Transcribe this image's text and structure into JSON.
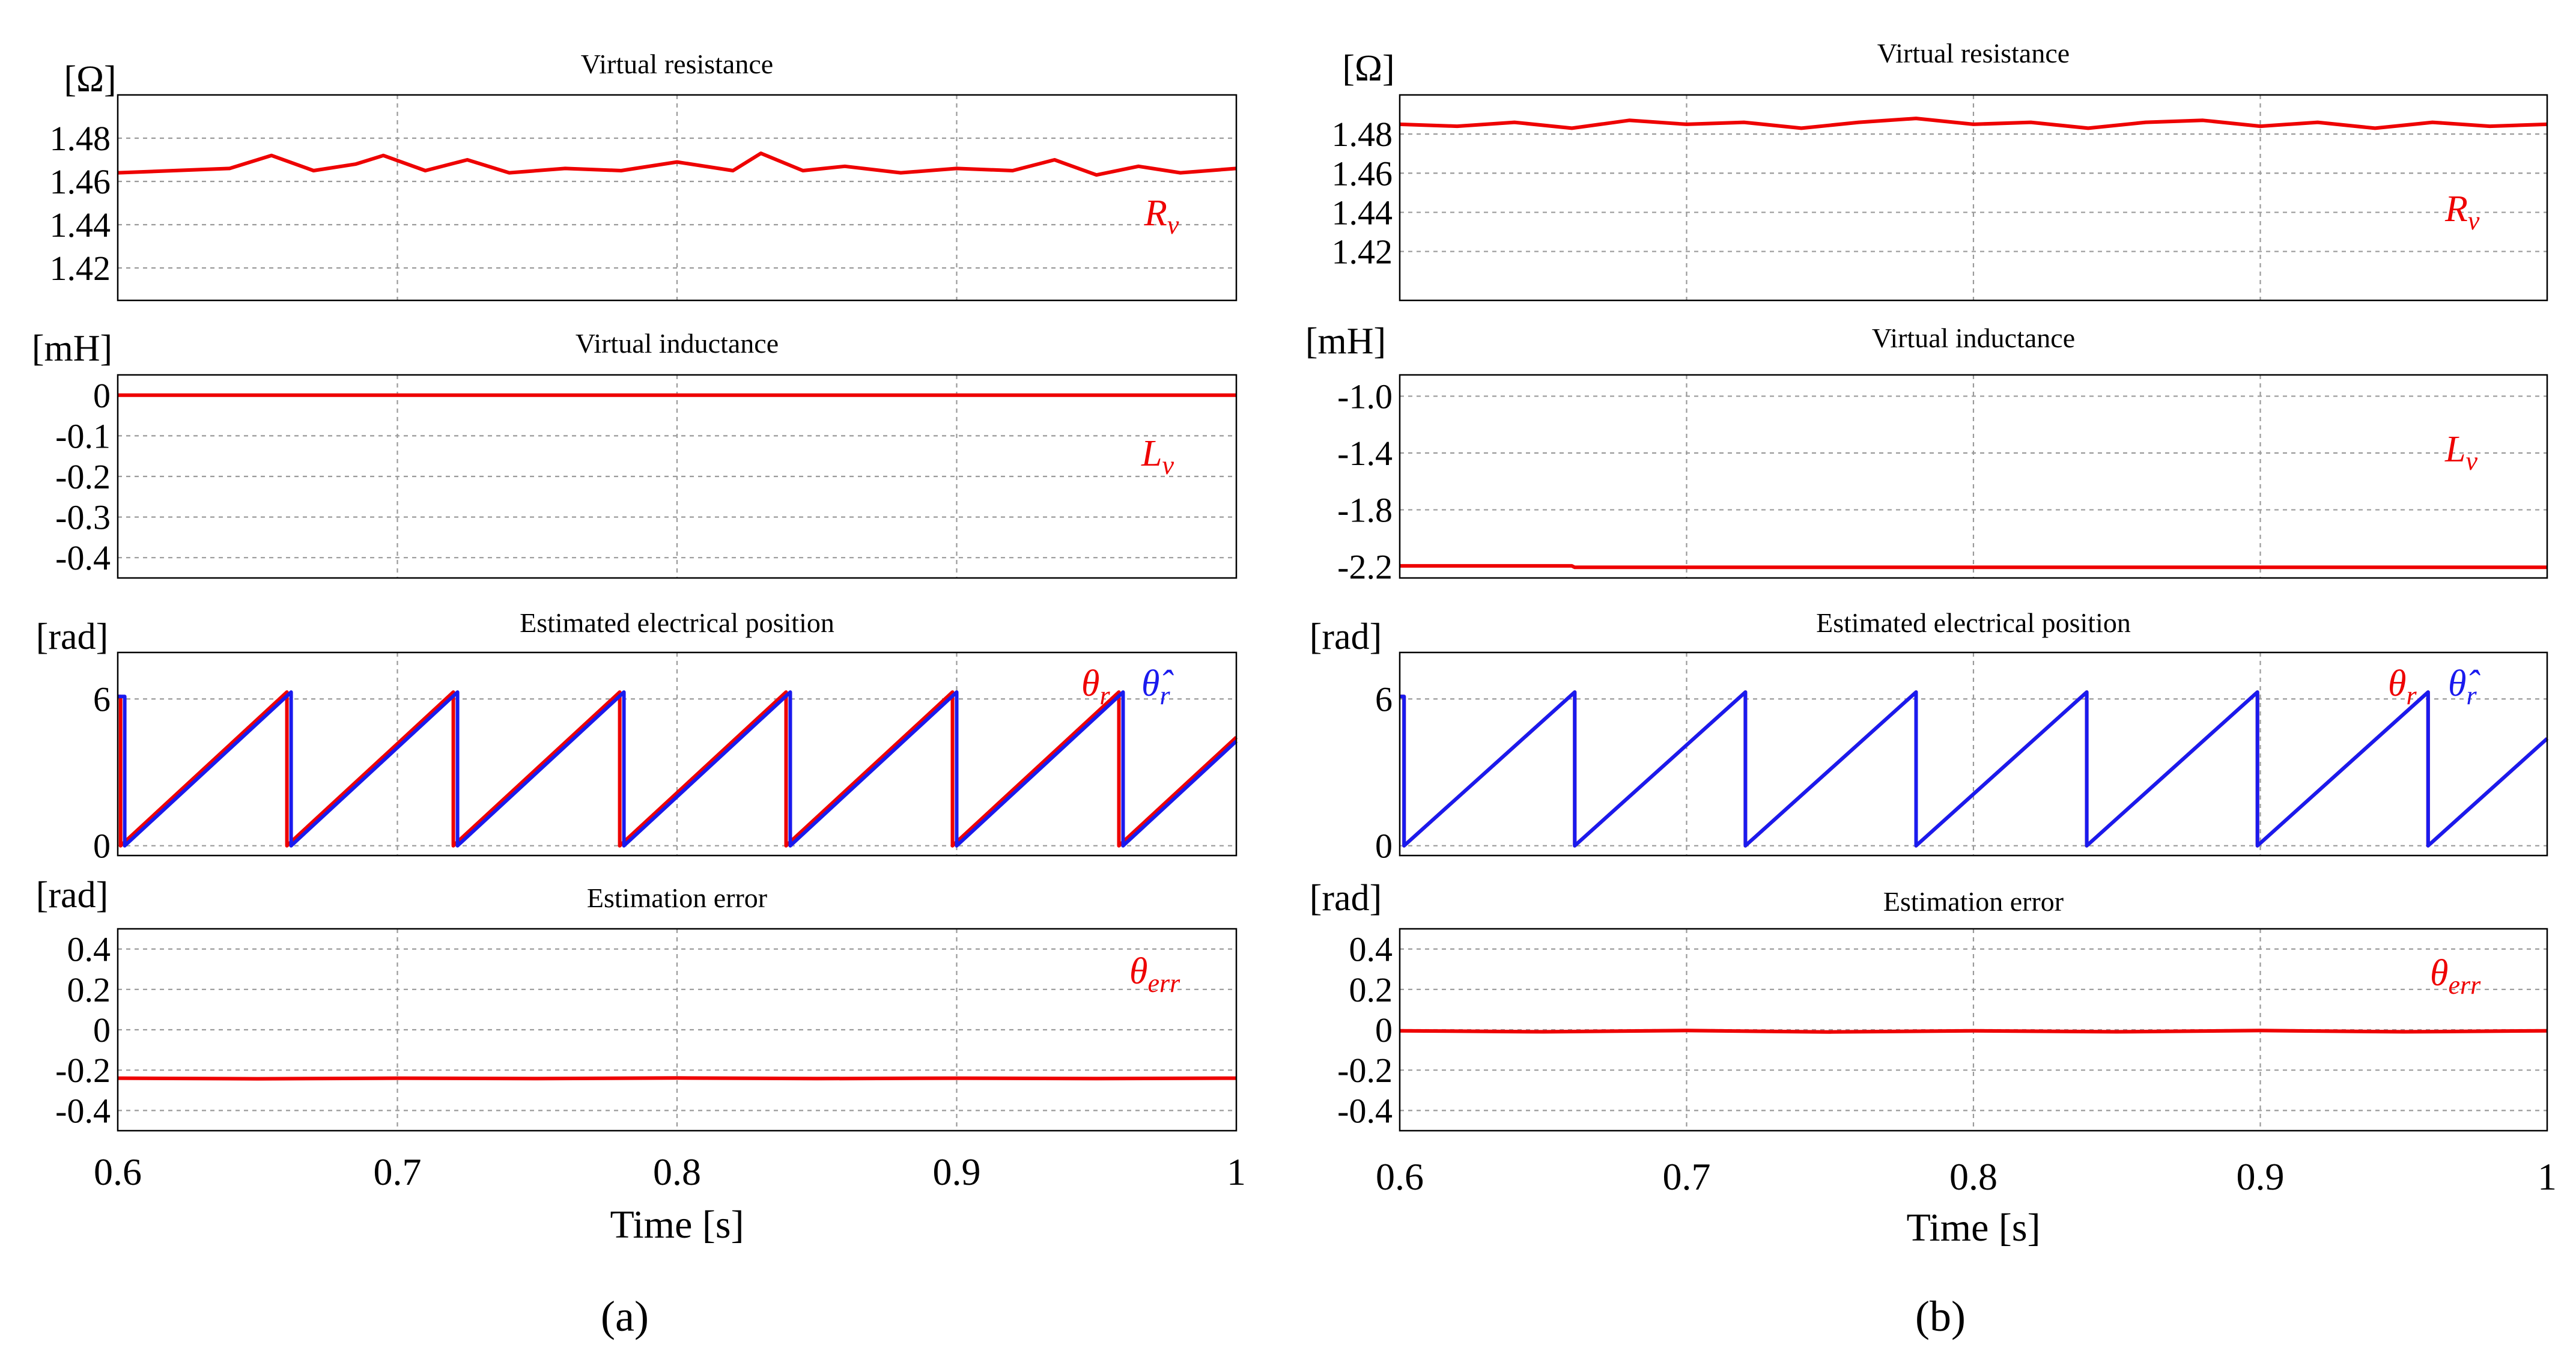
{
  "colors": {
    "red": "#ee0000",
    "blue": "#1a1aee"
  },
  "chart_data": [
    {
      "panel_label": "(a)",
      "xlabel": "Time [s]",
      "x_ticks": [
        "0.6",
        "0.7",
        "0.8",
        "0.9",
        "1"
      ],
      "xlim": [
        0.6,
        1.0
      ],
      "subplots": [
        {
          "type": "line",
          "title": "Virtual resistance",
          "unit": "[Ω]",
          "ylim": [
            1.405,
            1.5
          ],
          "y_ticks": [
            1.48,
            1.46,
            1.44,
            1.42
          ],
          "y_tick_labels": [
            "1.48",
            "1.46",
            "1.44",
            "1.42"
          ],
          "series": [
            {
              "name": "R_v",
              "label_main": "R",
              "label_sub": "v",
              "color_key": "red",
              "x": [
                0.6,
                0.62,
                0.64,
                0.655,
                0.67,
                0.685,
                0.695,
                0.71,
                0.725,
                0.74,
                0.76,
                0.78,
                0.8,
                0.82,
                0.83,
                0.845,
                0.86,
                0.88,
                0.9,
                0.92,
                0.935,
                0.95,
                0.965,
                0.98,
                1.0
              ],
              "y": [
                1.464,
                1.465,
                1.466,
                1.472,
                1.465,
                1.468,
                1.472,
                1.465,
                1.47,
                1.464,
                1.466,
                1.465,
                1.469,
                1.465,
                1.473,
                1.465,
                1.467,
                1.464,
                1.466,
                1.465,
                1.47,
                1.463,
                1.467,
                1.464,
                1.466
              ]
            }
          ]
        },
        {
          "type": "line",
          "title": "Virtual inductance",
          "unit": "[mH]",
          "ylim": [
            -0.45,
            0.05
          ],
          "y_ticks": [
            0,
            -0.1,
            -0.2,
            -0.3,
            -0.4
          ],
          "y_tick_labels": [
            "0",
            "-0.1",
            "-0.2",
            "-0.3",
            "-0.4"
          ],
          "series": [
            {
              "name": "L_v",
              "label_main": "L",
              "label_sub": "v",
              "color_key": "red",
              "x": [
                0.6,
                1.0
              ],
              "y": [
                0,
                0
              ]
            }
          ]
        },
        {
          "type": "line",
          "title": "Estimated electrical position",
          "unit": "[rad]",
          "ylim": [
            -0.4,
            7.9
          ],
          "y_ticks": [
            6,
            0
          ],
          "y_tick_labels": [
            "6",
            "0"
          ],
          "sawtooth": {
            "period": 0.0595,
            "start": 0.6025,
            "amplitude": 6.28,
            "end": 1.0
          },
          "series": [
            {
              "name": "theta_r",
              "label_main": "θ",
              "label_sub": "r",
              "color_key": "red",
              "phase_shift": -0.0015
            },
            {
              "name": "theta_r_hat",
              "label_main": "θ̂",
              "label_sub": "r",
              "color_key": "blue",
              "phase_shift": 0.0
            }
          ]
        },
        {
          "type": "line",
          "title": "Estimation error",
          "unit": "[rad]",
          "ylim": [
            -0.5,
            0.5
          ],
          "y_ticks": [
            0.4,
            0.2,
            0,
            -0.2,
            -0.4
          ],
          "y_tick_labels": [
            "0.4",
            "0.2",
            "0",
            "-0.2",
            "-0.4"
          ],
          "series": [
            {
              "name": "theta_err",
              "label_main": "θ",
              "label_sub": "err",
              "color_key": "red",
              "x": [
                0.6,
                0.65,
                0.7,
                0.75,
                0.8,
                0.85,
                0.9,
                0.95,
                1.0
              ],
              "y": [
                -0.24,
                -0.243,
                -0.24,
                -0.242,
                -0.239,
                -0.242,
                -0.24,
                -0.242,
                -0.24
              ]
            }
          ]
        }
      ]
    },
    {
      "panel_label": "(b)",
      "xlabel": "Time [s]",
      "x_ticks": [
        "0.6",
        "0.7",
        "0.8",
        "0.9",
        "1"
      ],
      "xlim": [
        0.6,
        1.0
      ],
      "subplots": [
        {
          "type": "line",
          "title": "Virtual resistance",
          "unit": "[Ω]",
          "ylim": [
            1.395,
            1.5
          ],
          "y_ticks": [
            1.48,
            1.46,
            1.44,
            1.42
          ],
          "y_tick_labels": [
            "1.48",
            "1.46",
            "1.44",
            "1.42"
          ],
          "series": [
            {
              "name": "R_v",
              "label_main": "R",
              "label_sub": "v",
              "color_key": "red",
              "x": [
                0.6,
                0.62,
                0.64,
                0.66,
                0.68,
                0.7,
                0.72,
                0.74,
                0.76,
                0.78,
                0.8,
                0.82,
                0.84,
                0.86,
                0.88,
                0.9,
                0.92,
                0.94,
                0.96,
                0.98,
                1.0
              ],
              "y": [
                1.485,
                1.484,
                1.486,
                1.483,
                1.487,
                1.485,
                1.486,
                1.483,
                1.486,
                1.488,
                1.485,
                1.486,
                1.483,
                1.486,
                1.487,
                1.484,
                1.486,
                1.483,
                1.486,
                1.484,
                1.485
              ]
            }
          ]
        },
        {
          "type": "line",
          "title": "Virtual inductance",
          "unit": "[mH]",
          "ylim": [
            -2.28,
            -0.85
          ],
          "y_ticks": [
            -1.0,
            -1.4,
            -1.8,
            -2.2
          ],
          "y_tick_labels": [
            "-1.0",
            "-1.4",
            "-1.8",
            "-2.2"
          ],
          "series": [
            {
              "name": "L_v",
              "label_main": "L",
              "label_sub": "v",
              "color_key": "red",
              "x": [
                0.6,
                0.66,
                0.661,
                1.0
              ],
              "y": [
                -2.195,
                -2.195,
                -2.205,
                -2.205
              ]
            }
          ]
        },
        {
          "type": "line",
          "title": "Estimated electrical position",
          "unit": "[rad]",
          "ylim": [
            -0.4,
            7.9
          ],
          "y_ticks": [
            6,
            0
          ],
          "y_tick_labels": [
            "6",
            "0"
          ],
          "sawtooth": {
            "period": 0.0595,
            "start": 0.6015,
            "amplitude": 6.28,
            "end": 1.0
          },
          "series": [
            {
              "name": "theta_r",
              "label_main": "θ",
              "label_sub": "r",
              "color_key": "red",
              "phase_shift": 0.0
            },
            {
              "name": "theta_r_hat",
              "label_main": "θ̂",
              "label_sub": "r",
              "color_key": "blue",
              "phase_shift": 0.0
            }
          ]
        },
        {
          "type": "line",
          "title": "Estimation error",
          "unit": "[rad]",
          "ylim": [
            -0.5,
            0.5
          ],
          "y_ticks": [
            0.4,
            0.2,
            0,
            -0.2,
            -0.4
          ],
          "y_tick_labels": [
            "0.4",
            "0.2",
            "0",
            "-0.2",
            "-0.4"
          ],
          "series": [
            {
              "name": "theta_err",
              "label_main": "θ",
              "label_sub": "err",
              "color_key": "red",
              "x": [
                0.6,
                0.65,
                0.7,
                0.75,
                0.8,
                0.85,
                0.9,
                0.95,
                1.0
              ],
              "y": [
                -0.005,
                -0.01,
                -0.004,
                -0.011,
                -0.005,
                -0.01,
                -0.004,
                -0.01,
                -0.005
              ]
            }
          ]
        }
      ]
    }
  ]
}
